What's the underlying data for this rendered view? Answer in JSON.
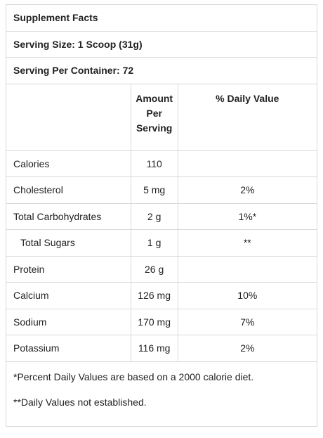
{
  "header": {
    "title": "Supplement Facts",
    "serving_size": "Serving Size: 1 Scoop (31g)",
    "servings": "Serving Per Container: 72"
  },
  "table": {
    "columns": [
      "Amount Per Serving",
      "% Daily Value"
    ],
    "rows": [
      {
        "label": "Calories",
        "amount": "110",
        "dv": null
      },
      {
        "label": "Cholesterol",
        "amount": "5 mg",
        "dv": "2%"
      },
      {
        "label": "Total Carbohydrates",
        "amount": "2 g",
        "dv": "1%*"
      },
      {
        "label": "Total Sugars",
        "amount": "1 g",
        "dv": "**",
        "indent": true
      },
      {
        "label": "Protein",
        "amount": "26 g",
        "dv": null
      },
      {
        "label": "Calcium",
        "amount": "126 mg",
        "dv": "10%"
      },
      {
        "label": "Sodium",
        "amount": "170 mg",
        "dv": "7%"
      },
      {
        "label": "Potassium",
        "amount": "116 mg",
        "dv": "2%"
      }
    ]
  },
  "footnotes": [
    "*Percent Daily Values are based on a 2000 calorie diet.",
    "**Daily Values not established."
  ]
}
